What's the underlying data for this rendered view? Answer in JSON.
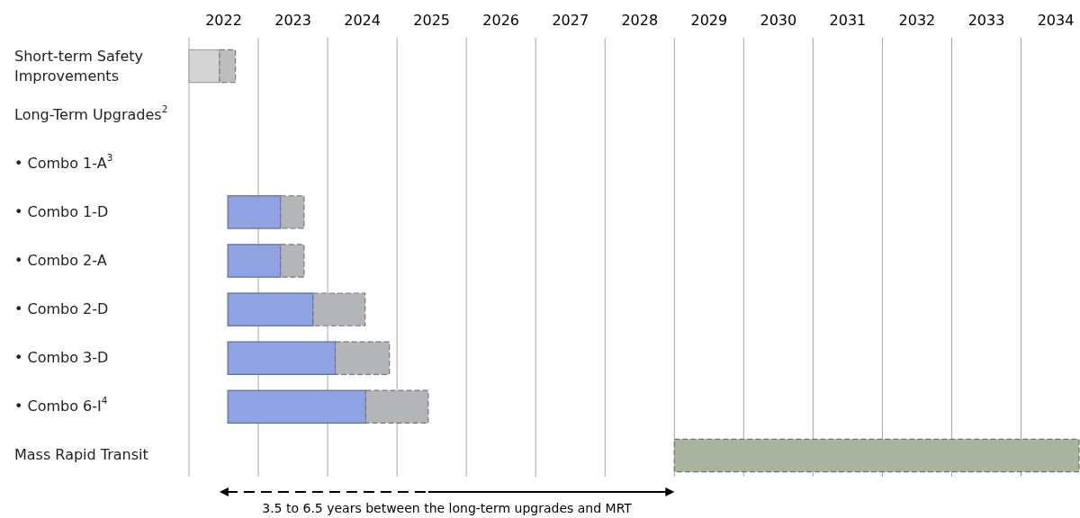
{
  "chart_data": {
    "type": "bar",
    "orientation": "horizontal",
    "categories": [
      "Short-term Safety Improvements",
      "Long-Term Upgrades$^{2}$",
      "• Combo 1-A$^{3}$",
      "• Combo 1-D",
      "• Combo 2-A",
      "• Combo 2-D",
      "• Combo 3-D",
      "• Combo 6-I$^{4}$",
      "Mass Rapid Transit"
    ],
    "series": [
      {
        "base": [
          2022,
          null,
          null,
          2022.56,
          2022.56,
          2022.56,
          2022.56,
          2022.56,
          null
        ],
        "values": [
          0.44,
          null,
          null,
          0.76,
          0.76,
          1.23,
          1.55,
          1.99,
          null
        ],
        "colors": [
          "#d4d4d4",
          null,
          null,
          "#8fa3e2",
          "#8fa3e2",
          "#8fa3e2",
          "#8fa3e2",
          "#8fa3e2",
          null
        ],
        "line_style": "solid"
      },
      {
        "base": [
          2022.44,
          null,
          null,
          2023.32,
          2023.32,
          2023.79,
          2024.11,
          2024.55,
          2029
        ],
        "values": [
          0.23,
          null,
          null,
          0.34,
          0.34,
          0.75,
          0.78,
          0.9,
          5.85
        ],
        "colors": [
          "#bdbdbd",
          null,
          null,
          "#b3b5b8",
          "#b3b5b8",
          "#b3b5b8",
          "#b3b5b8",
          "#b3b5b8",
          "#a8b59c"
        ],
        "line_style": "dashed"
      }
    ],
    "xlim": [
      2022,
      2034.85
    ],
    "xticks": [
      {
        "value": 2022,
        "label": null
      },
      {
        "value": 2022.5,
        "label": "2022"
      },
      {
        "value": 2023,
        "label": null
      },
      {
        "value": 2023.5,
        "label": "2023"
      },
      {
        "value": 2024,
        "label": null
      },
      {
        "value": 2024.5,
        "label": "2024"
      },
      {
        "value": 2025,
        "label": null
      },
      {
        "value": 2025.5,
        "label": "2025"
      },
      {
        "value": 2026,
        "label": null
      },
      {
        "value": 2026.5,
        "label": "2026"
      },
      {
        "value": 2027,
        "label": null
      },
      {
        "value": 2027.5,
        "label": "2027"
      },
      {
        "value": 2028,
        "label": null
      },
      {
        "value": 2028.5,
        "label": "2028"
      },
      {
        "value": 2029,
        "label": null
      },
      {
        "value": 2029.5,
        "label": "2029"
      },
      {
        "value": 2030,
        "label": null
      },
      {
        "value": 2030.5,
        "label": "2030"
      },
      {
        "value": 2031,
        "label": null
      },
      {
        "value": 2031.5,
        "label": "2031"
      },
      {
        "value": 2032,
        "label": null
      },
      {
        "value": 2032.5,
        "label": "2032"
      },
      {
        "value": 2033,
        "label": null
      },
      {
        "value": 2033.5,
        "label": "2033"
      },
      {
        "value": 2034,
        "label": null
      },
      {
        "value": 2034.5,
        "label": "2034"
      }
    ],
    "grid": "x",
    "annotations": [
      "3.5 to 6.5 years between the long-term upgrades and MRT"
    ]
  }
}
